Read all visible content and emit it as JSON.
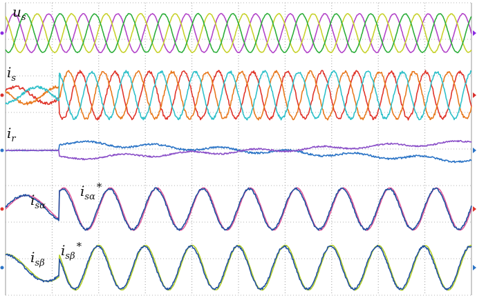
{
  "chart_data": {
    "type": "line",
    "grid": true,
    "grid_style": "dotted",
    "divisions": {
      "x": 10,
      "y": 8
    },
    "panels": [
      {
        "id": "us",
        "label": "u",
        "label_sub": "s",
        "label_star": "",
        "marker_color": "#8a2be2",
        "series": [
          {
            "color": "#b244c9",
            "amplitude": 1.0,
            "cycles": 13.5,
            "phase_deg": 0,
            "offset": 0,
            "noise": 0.02
          },
          {
            "color": "#c7d12a",
            "amplitude": 1.0,
            "cycles": 13.5,
            "phase_deg": 120,
            "offset": 0,
            "noise": 0.02
          },
          {
            "color": "#2cae3a",
            "amplitude": 1.0,
            "cycles": 13.5,
            "phase_deg": 240,
            "offset": 0,
            "noise": 0.02
          }
        ]
      },
      {
        "id": "is",
        "label": "i",
        "label_sub": "s",
        "label_star": "",
        "marker_color": "#d9302c",
        "series": [
          {
            "color": "#e0342a",
            "pre_amplitude": 0.35,
            "amplitude": 1.0,
            "cycles": 13.5,
            "phase_deg": 30,
            "offset": 0,
            "noise": 0.06
          },
          {
            "color": "#e8791e",
            "pre_amplitude": 0.35,
            "amplitude": 1.0,
            "cycles": 13.5,
            "phase_deg": 150,
            "offset": 0,
            "noise": 0.06
          },
          {
            "color": "#2dc0c9",
            "pre_amplitude": 0.35,
            "amplitude": 1.0,
            "cycles": 13.5,
            "phase_deg": 270,
            "offset": 0,
            "noise": 0.06
          }
        ]
      },
      {
        "id": "ir",
        "label": "i",
        "label_sub": "r",
        "label_star": "",
        "marker_color": "#2b74c6",
        "series": [
          {
            "color": "#2b74c6",
            "pre_amplitude": 0.0,
            "amplitude": 0.12,
            "cycles": 7,
            "phase_deg": 0,
            "offset_start": 0.45,
            "offset_end": -0.55,
            "noise": 0.05
          },
          {
            "color": "#8a4fc8",
            "pre_amplitude": 0.0,
            "amplitude": 0.1,
            "cycles": 7,
            "phase_deg": 180,
            "offset_start": -0.45,
            "offset_end": 0.45,
            "noise": 0.04
          }
        ]
      },
      {
        "id": "isa",
        "label": "i",
        "label_sub": "sα",
        "label_star": "",
        "ref_label": "i",
        "ref_label_sub": "sα",
        "ref_label_star": "*",
        "marker_color": "#e0342a",
        "series": [
          {
            "color": "#e05a9a",
            "pre_amplitude": 0.55,
            "amplitude": 0.85,
            "cycles": 10,
            "phase_deg": 0,
            "offset": 0,
            "noise": 0.01
          },
          {
            "color": "#1f4fa0",
            "pre_amplitude": 0.55,
            "amplitude": 0.82,
            "cycles": 10,
            "phase_deg": 8,
            "offset": 0,
            "noise": 0.04
          }
        ]
      },
      {
        "id": "isb",
        "label": "i",
        "label_sub": "sβ",
        "label_star": "",
        "ref_label": "i",
        "ref_label_sub": "sβ",
        "ref_label_star": "*",
        "marker_color": "#2b74c6",
        "series": [
          {
            "color": "#b6d12a",
            "pre_amplitude": 0.55,
            "amplitude": 0.9,
            "cycles": 10,
            "phase_deg": 90,
            "offset": 0,
            "noise": 0.01
          },
          {
            "color": "#1f4fa0",
            "pre_amplitude": 0.55,
            "amplitude": 0.86,
            "cycles": 10,
            "phase_deg": 98,
            "offset": 0,
            "noise": 0.04
          }
        ]
      }
    ]
  }
}
